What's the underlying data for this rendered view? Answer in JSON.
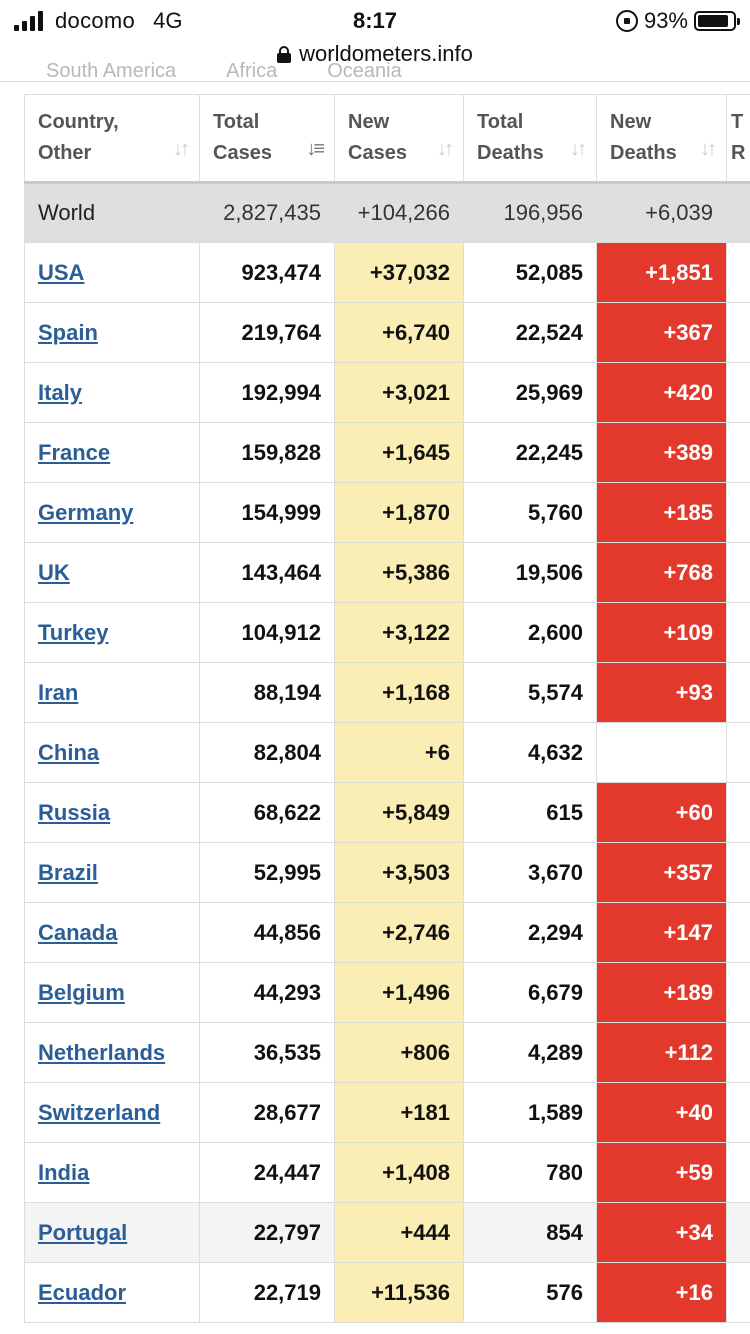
{
  "status_bar": {
    "carrier": "docomo",
    "network": "4G",
    "time": "8:17",
    "battery": "93%"
  },
  "browser": {
    "url": "worldometers.info"
  },
  "ghost_tabs": [
    "South America",
    "Africa",
    "Oceania"
  ],
  "table": {
    "headers": [
      {
        "line1": "Country,",
        "line2": "Other"
      },
      {
        "line1": "Total",
        "line2": "Cases"
      },
      {
        "line1": "New",
        "line2": "Cases"
      },
      {
        "line1": "Total",
        "line2": "Deaths"
      },
      {
        "line1": "New",
        "line2": "Deaths"
      },
      {
        "line1": "T",
        "line2": "R"
      }
    ],
    "world": {
      "country": "World",
      "total_cases": "2,827,435",
      "new_cases": "+104,266",
      "total_deaths": "196,956",
      "new_deaths": "+6,039"
    },
    "rows": [
      {
        "country": "USA",
        "total_cases": "923,474",
        "new_cases": "+37,032",
        "total_deaths": "52,085",
        "new_deaths": "+1,851"
      },
      {
        "country": "Spain",
        "total_cases": "219,764",
        "new_cases": "+6,740",
        "total_deaths": "22,524",
        "new_deaths": "+367"
      },
      {
        "country": "Italy",
        "total_cases": "192,994",
        "new_cases": "+3,021",
        "total_deaths": "25,969",
        "new_deaths": "+420"
      },
      {
        "country": "France",
        "total_cases": "159,828",
        "new_cases": "+1,645",
        "total_deaths": "22,245",
        "new_deaths": "+389"
      },
      {
        "country": "Germany",
        "total_cases": "154,999",
        "new_cases": "+1,870",
        "total_deaths": "5,760",
        "new_deaths": "+185"
      },
      {
        "country": "UK",
        "total_cases": "143,464",
        "new_cases": "+5,386",
        "total_deaths": "19,506",
        "new_deaths": "+768"
      },
      {
        "country": "Turkey",
        "total_cases": "104,912",
        "new_cases": "+3,122",
        "total_deaths": "2,600",
        "new_deaths": "+109"
      },
      {
        "country": "Iran",
        "total_cases": "88,194",
        "new_cases": "+1,168",
        "total_deaths": "5,574",
        "new_deaths": "+93"
      },
      {
        "country": "China",
        "total_cases": "82,804",
        "new_cases": "+6",
        "total_deaths": "4,632",
        "new_deaths": ""
      },
      {
        "country": "Russia",
        "total_cases": "68,622",
        "new_cases": "+5,849",
        "total_deaths": "615",
        "new_deaths": "+60"
      },
      {
        "country": "Brazil",
        "total_cases": "52,995",
        "new_cases": "+3,503",
        "total_deaths": "3,670",
        "new_deaths": "+357"
      },
      {
        "country": "Canada",
        "total_cases": "44,856",
        "new_cases": "+2,746",
        "total_deaths": "2,294",
        "new_deaths": "+147"
      },
      {
        "country": "Belgium",
        "total_cases": "44,293",
        "new_cases": "+1,496",
        "total_deaths": "6,679",
        "new_deaths": "+189"
      },
      {
        "country": "Netherlands",
        "total_cases": "36,535",
        "new_cases": "+806",
        "total_deaths": "4,289",
        "new_deaths": "+112"
      },
      {
        "country": "Switzerland",
        "total_cases": "28,677",
        "new_cases": "+181",
        "total_deaths": "1,589",
        "new_deaths": "+40"
      },
      {
        "country": "India",
        "total_cases": "24,447",
        "new_cases": "+1,408",
        "total_deaths": "780",
        "new_deaths": "+59"
      },
      {
        "country": "Portugal",
        "total_cases": "22,797",
        "new_cases": "+444",
        "total_deaths": "854",
        "new_deaths": "+34"
      },
      {
        "country": "Ecuador",
        "total_cases": "22,719",
        "new_cases": "+11,536",
        "total_deaths": "576",
        "new_deaths": "+16"
      }
    ]
  }
}
